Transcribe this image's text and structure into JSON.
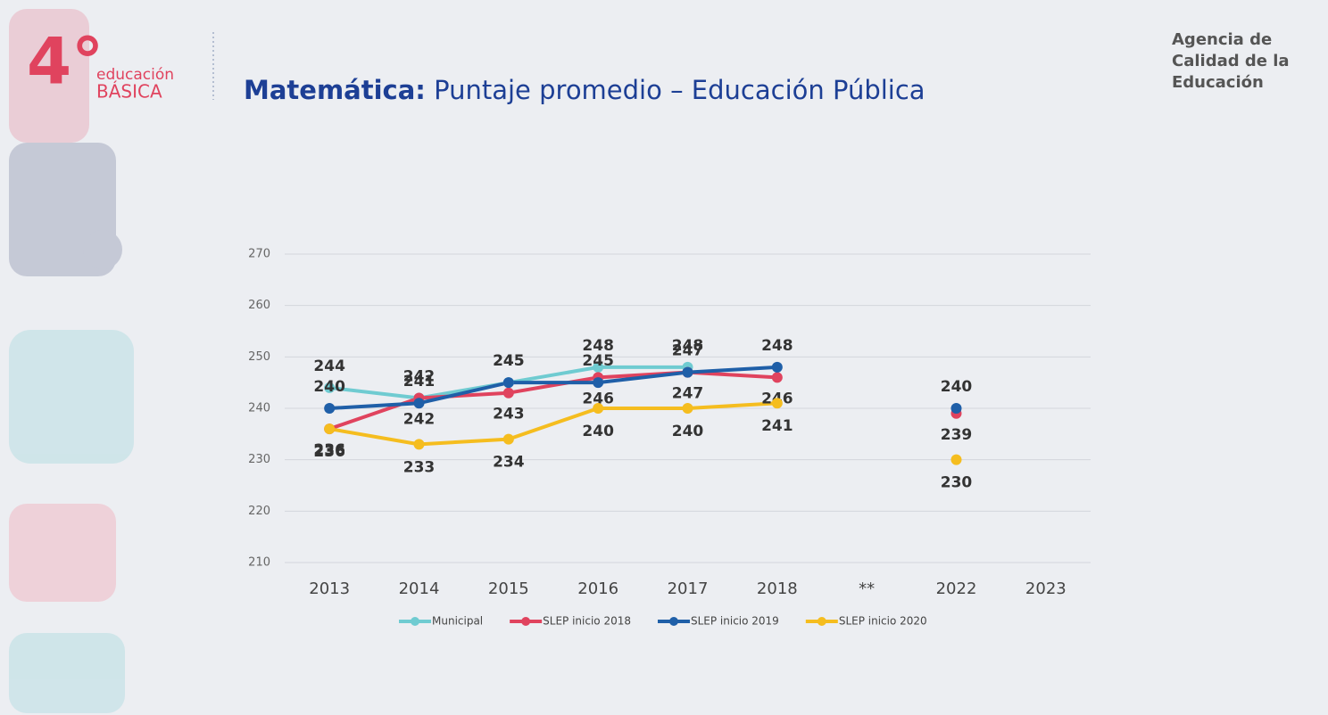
{
  "slide": {
    "badge_number": "4°",
    "badge_line1": "educación",
    "badge_line2": "BÁSICA",
    "agency": [
      "Agencia de",
      "Calidad de la",
      "Educación"
    ]
  },
  "chart_data": {
    "type": "line",
    "title_lead": "Matemática:",
    "title": "Puntaje promedio – Educación Pública",
    "categories": [
      "2013",
      "2014",
      "2015",
      "2016",
      "2017",
      "2018",
      "**",
      "2022",
      "2023"
    ],
    "series": [
      {
        "name": "Municipal",
        "color": "#6fcbd1",
        "values": [
          244,
          242,
          245,
          248,
          248,
          null,
          null,
          null,
          null
        ]
      },
      {
        "name": "SLEP inicio 2018",
        "color": "#e0435e",
        "values": [
          236,
          242,
          243,
          246,
          247,
          246,
          null,
          239,
          null
        ]
      },
      {
        "name": "SLEP inicio 2019",
        "color": "#1f5fa8",
        "values": [
          240,
          241,
          245,
          245,
          247,
          248,
          null,
          240,
          null
        ]
      },
      {
        "name": "SLEP inicio 2020",
        "color": "#f5bd1f",
        "values": [
          236,
          233,
          234,
          240,
          240,
          241,
          null,
          230,
          null
        ]
      }
    ],
    "ylim": [
      210,
      270
    ],
    "yticks": [
      210,
      220,
      230,
      240,
      250,
      260,
      270
    ],
    "grid": true,
    "legend": "bottom"
  }
}
